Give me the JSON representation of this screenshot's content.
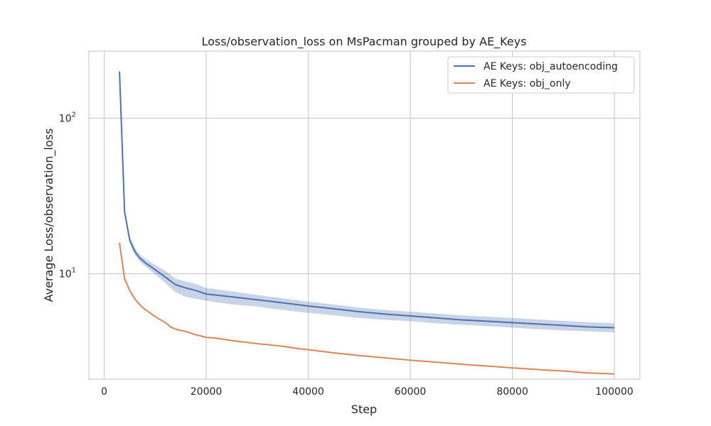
{
  "chart_data": {
    "type": "line",
    "title": "Loss/observation_loss on MsPacman grouped by AE_Keys",
    "xlabel": "Step",
    "ylabel": "Average Loss/observation_loss",
    "xscale": "linear",
    "yscale": "log",
    "xlim": [
      -3000,
      105000
    ],
    "ylim": [
      2.1,
      270
    ],
    "xticks": [
      0,
      20000,
      40000,
      60000,
      80000,
      100000
    ],
    "xtick_labels": [
      "0",
      "20000",
      "40000",
      "60000",
      "80000",
      "100000"
    ],
    "yticks": [
      10,
      100
    ],
    "ytick_label_bases": [
      "10",
      "10"
    ],
    "ytick_label_exps": [
      "1",
      "2"
    ],
    "grid": true,
    "legend_position": "top-right",
    "series": [
      {
        "name": "AE Keys: obj_autoencoding",
        "color": "#4c72b0",
        "band": true,
        "x": [
          3000,
          4000,
          5000,
          6000,
          7000,
          8000,
          10000,
          12000,
          14000,
          16000,
          18000,
          20000,
          25000,
          30000,
          35000,
          40000,
          45000,
          50000,
          55000,
          60000,
          65000,
          70000,
          75000,
          80000,
          85000,
          90000,
          95000,
          100000
        ],
        "y": [
          200,
          25,
          16.5,
          13.9,
          12.6,
          11.8,
          10.6,
          9.5,
          8.5,
          8.1,
          7.8,
          7.4,
          7.1,
          6.8,
          6.5,
          6.2,
          5.95,
          5.7,
          5.5,
          5.35,
          5.2,
          5.05,
          4.95,
          4.85,
          4.75,
          4.65,
          4.55,
          4.5
        ],
        "lower": [
          200,
          23.5,
          15.8,
          13.2,
          12.0,
          11.2,
          9.9,
          8.7,
          7.6,
          7.1,
          6.9,
          6.7,
          6.35,
          6.15,
          5.85,
          5.6,
          5.4,
          5.2,
          5.05,
          4.95,
          4.8,
          4.7,
          4.6,
          4.5,
          4.4,
          4.32,
          4.25,
          4.2
        ],
        "upper": [
          200,
          26.5,
          17.3,
          14.7,
          13.3,
          12.5,
          11.4,
          10.4,
          9.3,
          8.9,
          8.6,
          8.1,
          7.7,
          7.3,
          6.95,
          6.6,
          6.35,
          6.05,
          5.85,
          5.7,
          5.55,
          5.4,
          5.3,
          5.2,
          5.08,
          4.98,
          4.88,
          4.8
        ]
      },
      {
        "name": "AE Keys: obj_only",
        "color": "#dd8452",
        "band": false,
        "x": [
          3000,
          4000,
          5000,
          6000,
          7000,
          8000,
          10000,
          12000,
          13000,
          14000,
          16000,
          18000,
          20000,
          22000,
          25000,
          30000,
          35000,
          38000,
          40000,
          45000,
          50000,
          55000,
          60000,
          65000,
          70000,
          75000,
          80000,
          85000,
          90000,
          95000,
          100000
        ],
        "y": [
          15.8,
          9.3,
          7.8,
          6.9,
          6.3,
          5.9,
          5.3,
          4.85,
          4.55,
          4.4,
          4.25,
          4.05,
          3.9,
          3.85,
          3.72,
          3.55,
          3.42,
          3.3,
          3.25,
          3.1,
          2.98,
          2.88,
          2.78,
          2.7,
          2.62,
          2.55,
          2.48,
          2.42,
          2.37,
          2.3,
          2.27
        ]
      }
    ]
  }
}
